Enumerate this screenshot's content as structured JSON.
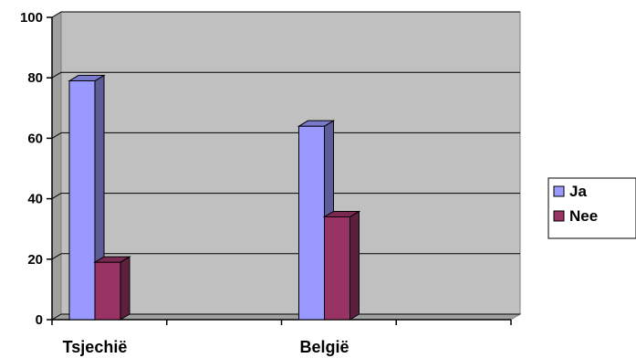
{
  "chart_data": {
    "type": "bar",
    "categories": [
      "Tsjechië",
      "België"
    ],
    "series": [
      {
        "name": "Ja",
        "values": [
          79,
          64
        ],
        "color": "#9999ff"
      },
      {
        "name": "Nee",
        "values": [
          19,
          34
        ],
        "color": "#993366"
      }
    ],
    "ylim": [
      0,
      100
    ],
    "yticks": [
      0,
      20,
      40,
      60,
      80,
      100
    ],
    "grid": true,
    "legend_position": "right",
    "plot_background": "#c0c0c0",
    "style": "3d-clustered-column"
  }
}
